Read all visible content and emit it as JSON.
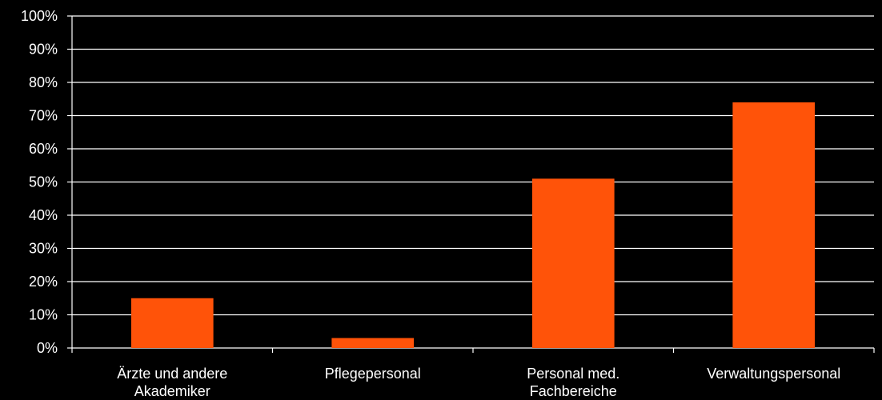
{
  "chart_data": {
    "type": "bar",
    "categories": [
      [
        "Ärzte und andere",
        "Akademiker"
      ],
      [
        "Pflegepersonal"
      ],
      [
        "Personal med.",
        "Fachbereiche"
      ],
      [
        "Verwaltungspersonal"
      ]
    ],
    "values": [
      15,
      3,
      51,
      74
    ],
    "ylim": [
      0,
      100
    ],
    "yticks": [
      "0%",
      "10%",
      "20%",
      "30%",
      "40%",
      "50%",
      "60%",
      "70%",
      "80%",
      "90%",
      "100%"
    ],
    "grid": true,
    "bar_color": "#FF5309",
    "background": "#000000",
    "text_color": "#FFFFFF"
  }
}
